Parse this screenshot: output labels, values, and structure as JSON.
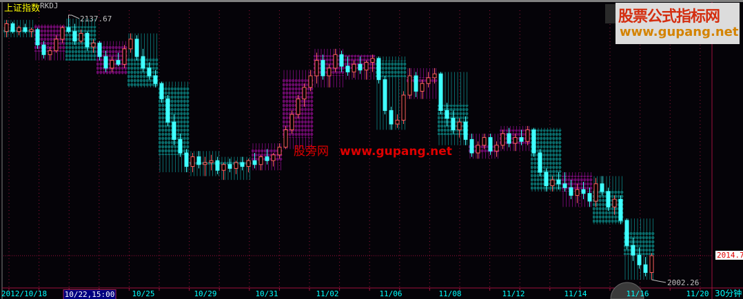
{
  "header": {
    "title": "上证指数",
    "indicator": "RKDJ"
  },
  "watermarks": {
    "top_cn": "股票公式指标网",
    "top_url": "www.gupang.net",
    "center_cn": "股旁网",
    "center_url": "www.gupang.net"
  },
  "colors": {
    "up": "#ff6060",
    "down": "#40ffff",
    "purple_block": "#6a0a6a",
    "teal_block": "#0a6a6a",
    "grid": "#a0103c",
    "axis_text": "#00ffff"
  },
  "chart_data": {
    "type": "candlestick",
    "period": "30分钟",
    "ylim": [
      2002.26,
      2137.67
    ],
    "annotations": {
      "high": "2137.67",
      "low": "2002.26",
      "last": "2014.7"
    },
    "last_price": 2014.7,
    "x_tick_labels": [
      "2012/10/18",
      "10/22,15:00",
      "10/25",
      "10/29",
      "10/31",
      "11/02",
      "11/06",
      "11/08",
      "11/12",
      "11/14",
      "11/16",
      "11/20"
    ],
    "selected_tick": "10/22,15:00",
    "grid": true,
    "rkdj_blocks": [
      {
        "color": "teal",
        "top": 2133.0,
        "bottom": 2130.2
      },
      {
        "color": "purple",
        "top": 2134.8,
        "bottom": 2120.5
      },
      {
        "color": "teal",
        "top": 2133.7,
        "bottom": 2115.9
      },
      {
        "color": "purple",
        "top": 2124.1,
        "bottom": 2108.7
      },
      {
        "color": "teal",
        "top": 2117.0,
        "bottom": 2102.7
      },
      {
        "color": "teal",
        "top": 2102.7,
        "bottom": 2066.9
      },
      {
        "color": "teal",
        "top": 2063.4,
        "bottom": 2061.6
      },
      {
        "color": "teal",
        "top": 2063.4,
        "bottom": 2061.6
      },
      {
        "color": "purple",
        "top": 2070.5,
        "bottom": 2063.4
      },
      {
        "color": "purple",
        "top": 2106.2,
        "bottom": 2075.9
      },
      {
        "color": "purple",
        "top": 2118.7,
        "bottom": 2108.0
      },
      {
        "color": "purple",
        "top": 2118.7,
        "bottom": 2111.6
      },
      {
        "color": "teal",
        "top": 2115.9,
        "bottom": 2107.3
      },
      {
        "color": "purple",
        "top": 2107.3,
        "bottom": 2104.4
      },
      {
        "color": "teal",
        "top": 2093.0,
        "bottom": 2077.3
      },
      {
        "color": "purple",
        "top": 2072.3,
        "bottom": 2068.0
      },
      {
        "color": "purple",
        "top": 2080.1,
        "bottom": 2072.3
      },
      {
        "color": "teal",
        "top": 2080.1,
        "bottom": 2049.1
      },
      {
        "color": "purple",
        "top": 2056.2,
        "bottom": 2048.0
      },
      {
        "color": "teal",
        "top": 2049.1,
        "bottom": 2031.2
      },
      {
        "color": "teal",
        "top": 2027.6,
        "bottom": 2015.1
      }
    ],
    "candles_ohlc": [
      [
        2131,
        2137,
        2128,
        2135
      ],
      [
        2135,
        2136,
        2130,
        2131
      ],
      [
        2131,
        2134,
        2129,
        2133
      ],
      [
        2133,
        2135,
        2130,
        2131
      ],
      [
        2131,
        2133,
        2128,
        2132
      ],
      [
        2132,
        2133,
        2122,
        2124
      ],
      [
        2124,
        2126,
        2117,
        2119
      ],
      [
        2119,
        2123,
        2116,
        2121
      ],
      [
        2121,
        2129,
        2120,
        2127
      ],
      [
        2127,
        2134,
        2125,
        2133
      ],
      [
        2133,
        2137.67,
        2130,
        2131
      ],
      [
        2131,
        2135,
        2124,
        2126
      ],
      [
        2126,
        2132,
        2125,
        2130
      ],
      [
        2130,
        2131,
        2121,
        2123
      ],
      [
        2123,
        2127,
        2120,
        2125
      ],
      [
        2125,
        2126,
        2116,
        2118
      ],
      [
        2118,
        2121,
        2110,
        2112
      ],
      [
        2112,
        2118,
        2110,
        2116
      ],
      [
        2116,
        2120,
        2113,
        2114
      ],
      [
        2114,
        2124,
        2112,
        2122
      ],
      [
        2122,
        2130,
        2120,
        2127
      ],
      [
        2127,
        2129,
        2116,
        2118
      ],
      [
        2118,
        2122,
        2110,
        2112
      ],
      [
        2112,
        2115,
        2106,
        2108
      ],
      [
        2108,
        2111,
        2102,
        2104
      ],
      [
        2104,
        2105,
        2094,
        2096
      ],
      [
        2096,
        2098,
        2082,
        2084
      ],
      [
        2084,
        2088,
        2072,
        2075
      ],
      [
        2075,
        2078,
        2066,
        2068
      ],
      [
        2068,
        2070,
        2058,
        2061
      ],
      [
        2061,
        2068,
        2058,
        2066
      ],
      [
        2066,
        2069,
        2060,
        2062
      ],
      [
        2062,
        2066,
        2056,
        2063
      ],
      [
        2063,
        2067,
        2059,
        2064
      ],
      [
        2064,
        2066,
        2057,
        2059
      ],
      [
        2059,
        2063,
        2054,
        2062
      ],
      [
        2062,
        2065,
        2058,
        2060
      ],
      [
        2060,
        2064,
        2057,
        2063
      ],
      [
        2063,
        2066,
        2059,
        2061
      ],
      [
        2061,
        2065,
        2058,
        2064
      ],
      [
        2064,
        2068,
        2060,
        2062
      ],
      [
        2062,
        2067,
        2059,
        2066
      ],
      [
        2066,
        2070,
        2062,
        2064
      ],
      [
        2064,
        2068,
        2061,
        2067
      ],
      [
        2067,
        2073,
        2065,
        2071
      ],
      [
        2071,
        2082,
        2070,
        2080
      ],
      [
        2080,
        2090,
        2078,
        2088
      ],
      [
        2088,
        2098,
        2086,
        2096
      ],
      [
        2096,
        2104,
        2092,
        2102
      ],
      [
        2102,
        2111,
        2100,
        2108
      ],
      [
        2108,
        2120,
        2104,
        2116
      ],
      [
        2116,
        2119,
        2106,
        2108
      ],
      [
        2108,
        2114,
        2102,
        2112
      ],
      [
        2112,
        2122,
        2110,
        2119
      ],
      [
        2119,
        2121,
        2110,
        2113
      ],
      [
        2113,
        2118,
        2108,
        2110
      ],
      [
        2110,
        2116,
        2107,
        2114
      ],
      [
        2114,
        2118,
        2109,
        2111
      ],
      [
        2111,
        2116,
        2106,
        2115
      ],
      [
        2115,
        2119,
        2110,
        2117
      ],
      [
        2117,
        2118,
        2104,
        2106
      ],
      [
        2106,
        2108,
        2088,
        2090
      ],
      [
        2090,
        2092,
        2080,
        2083
      ],
      [
        2083,
        2088,
        2081,
        2085
      ],
      [
        2085,
        2100,
        2083,
        2098
      ],
      [
        2098,
        2112,
        2096,
        2108
      ],
      [
        2108,
        2110,
        2097,
        2100
      ],
      [
        2100,
        2106,
        2096,
        2104
      ],
      [
        2104,
        2110,
        2102,
        2107
      ],
      [
        2107,
        2112,
        2104,
        2109
      ],
      [
        2109,
        2110,
        2088,
        2090
      ],
      [
        2090,
        2094,
        2082,
        2086
      ],
      [
        2086,
        2090,
        2078,
        2080
      ],
      [
        2080,
        2086,
        2076,
        2084
      ],
      [
        2084,
        2087,
        2072,
        2075
      ],
      [
        2075,
        2078,
        2066,
        2068
      ],
      [
        2068,
        2074,
        2065,
        2072
      ],
      [
        2072,
        2078,
        2070,
        2076
      ],
      [
        2076,
        2078,
        2067,
        2069
      ],
      [
        2069,
        2074,
        2066,
        2072
      ],
      [
        2072,
        2080,
        2070,
        2078
      ],
      [
        2078,
        2081,
        2071,
        2073
      ],
      [
        2073,
        2078,
        2069,
        2076
      ],
      [
        2076,
        2080,
        2072,
        2074
      ],
      [
        2074,
        2082,
        2072,
        2080
      ],
      [
        2080,
        2081,
        2066,
        2068
      ],
      [
        2068,
        2070,
        2056,
        2058
      ],
      [
        2058,
        2060,
        2048,
        2051
      ],
      [
        2051,
        2056,
        2048,
        2054
      ],
      [
        2054,
        2058,
        2049,
        2052
      ],
      [
        2052,
        2058,
        2048,
        2050
      ],
      [
        2050,
        2054,
        2044,
        2046
      ],
      [
        2046,
        2052,
        2042,
        2049
      ],
      [
        2049,
        2053,
        2044,
        2047
      ],
      [
        2047,
        2050,
        2040,
        2043
      ],
      [
        2043,
        2055,
        2040,
        2052
      ],
      [
        2052,
        2056,
        2046,
        2048
      ],
      [
        2048,
        2050,
        2038,
        2040
      ],
      [
        2040,
        2046,
        2036,
        2044
      ],
      [
        2044,
        2046,
        2031,
        2033
      ],
      [
        2033,
        2034,
        2018,
        2020
      ],
      [
        2020,
        2024,
        2012,
        2015
      ],
      [
        2015,
        2019,
        2008,
        2010
      ],
      [
        2010,
        2014,
        2004,
        2006
      ],
      [
        2006,
        2016,
        2002.26,
        2014.7
      ]
    ]
  }
}
